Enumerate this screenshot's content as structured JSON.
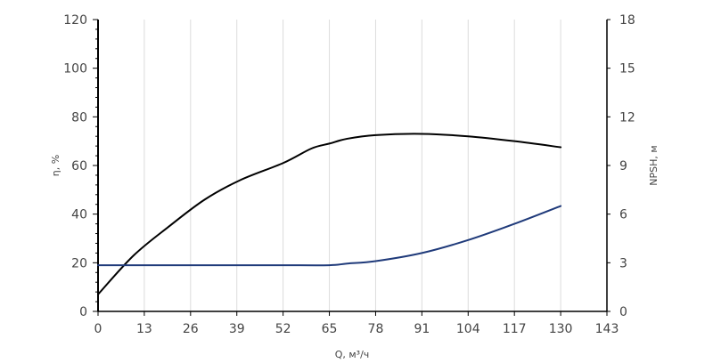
{
  "chart_data": {
    "type": "line",
    "xlabel": "Q, м³/ч",
    "ylabel_left": "η, %",
    "ylabel_right": "NPSH, м",
    "x_ticks": [
      "0",
      "13",
      "26",
      "39",
      "52",
      "65",
      "78",
      "91",
      "104",
      "117",
      "130",
      "143"
    ],
    "y_left_ticks": [
      "0",
      "20",
      "40",
      "60",
      "80",
      "100",
      "120"
    ],
    "y_right_ticks": [
      "0",
      "3",
      "6",
      "9",
      "12",
      "15",
      "18"
    ],
    "xlim": [
      0,
      143
    ],
    "ylim_left": [
      0,
      120
    ],
    "ylim_right": [
      0,
      18
    ],
    "grid": {
      "vertical": true,
      "horizontal": false
    },
    "series": [
      {
        "axis": "left",
        "color": "#000000",
        "x": [
          0,
          10,
          20,
          30,
          40,
          52,
          60,
          65,
          70,
          78,
          91,
          104,
          117,
          130
        ],
        "y": [
          7,
          23,
          35,
          46,
          54,
          61,
          67,
          69,
          71,
          72.5,
          73,
          72,
          70,
          67.5
        ]
      },
      {
        "axis": "right",
        "color": "#1f3a7a",
        "x": [
          0,
          13,
          26,
          39,
          52,
          65,
          70,
          78,
          91,
          104,
          117,
          130
        ],
        "y": [
          2.85,
          2.85,
          2.85,
          2.85,
          2.85,
          2.85,
          2.95,
          3.1,
          3.6,
          4.4,
          5.4,
          6.5
        ]
      }
    ]
  }
}
